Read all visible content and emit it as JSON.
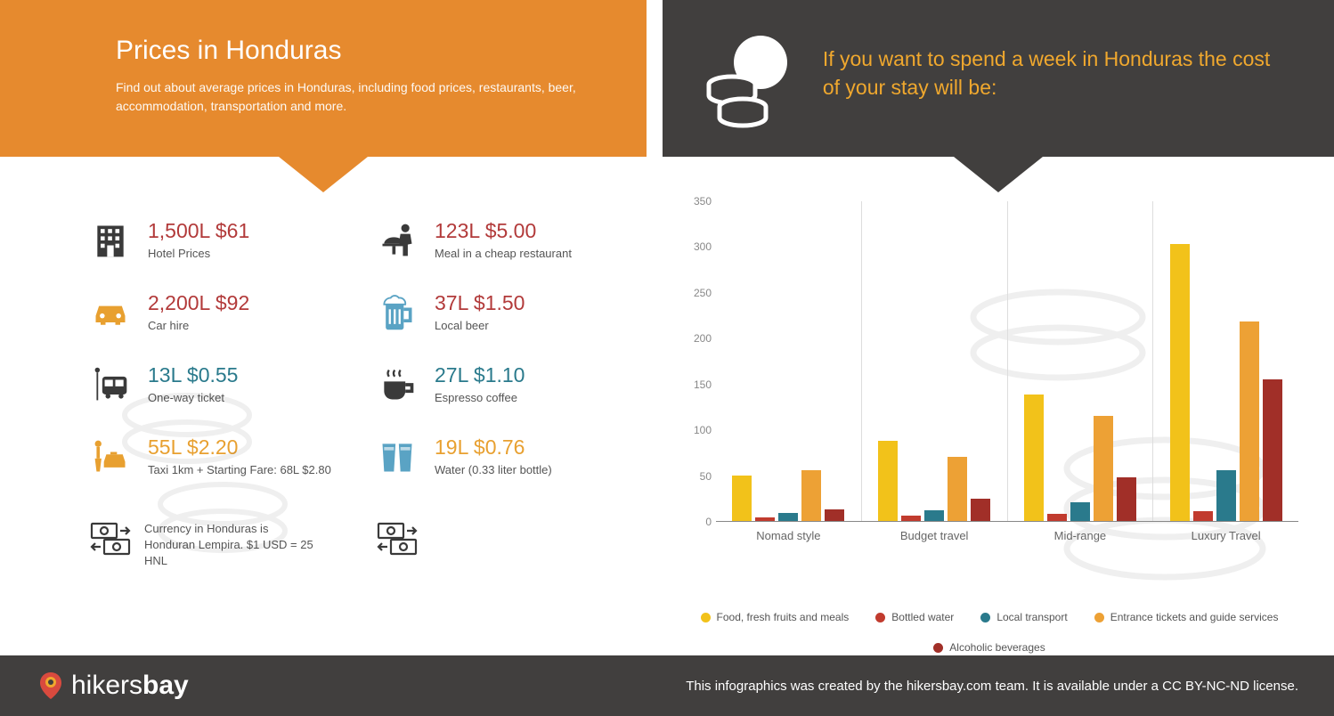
{
  "header": {
    "title": "Prices in Honduras",
    "subtitle": "Find out about average prices in Honduras, including food prices, restaurants, beer, accommodation, transportation and more.",
    "hero_text": "If you want to spend a week in Honduras the cost of your stay will be:"
  },
  "colors": {
    "orange_banner": "#e68a2e",
    "dark_banner": "#413f3e",
    "red": "#b23a3a",
    "teal": "#2a7a8c",
    "orange_text": "#e8a030",
    "icon_dark": "#3a3a3a",
    "icon_orange": "#e8a030",
    "icon_blue": "#5aa3c4"
  },
  "prices": {
    "hotel": {
      "amount": "1,500L $61",
      "label": "Hotel Prices",
      "color": "red",
      "icon": "building",
      "icon_color": "#3a3a3a"
    },
    "meal": {
      "amount": "123L $5.00",
      "label": "Meal in a cheap restaurant",
      "color": "red",
      "icon": "waiter",
      "icon_color": "#3a3a3a"
    },
    "car": {
      "amount": "2,200L $92",
      "label": "Car hire",
      "color": "red",
      "icon": "car",
      "icon_color": "#e8a030"
    },
    "beer": {
      "amount": "37L $1.50",
      "label": "Local beer",
      "color": "red",
      "icon": "beer",
      "icon_color": "#5aa3c4"
    },
    "ticket": {
      "amount": "13L $0.55",
      "label": "One-way ticket",
      "color": "teal",
      "icon": "bus",
      "icon_color": "#3a3a3a"
    },
    "coffee": {
      "amount": "27L $1.10",
      "label": "Espresso coffee",
      "color": "teal",
      "icon": "coffee",
      "icon_color": "#3a3a3a"
    },
    "taxi": {
      "amount": "55L $2.20",
      "label": "Taxi 1km + Starting Fare: 68L $2.80",
      "color": "orange",
      "icon": "taxi",
      "icon_color": "#e8a030"
    },
    "water": {
      "amount": "19L $0.76",
      "label": "Water (0.33 liter bottle)",
      "color": "orange",
      "icon": "glass",
      "icon_color": "#5aa3c4"
    }
  },
  "currency_note": "Currency in Honduras is Honduran Lempira. $1 USD = 25 HNL",
  "chart": {
    "type": "bar",
    "ylim": [
      0,
      350
    ],
    "ytick_step": 50,
    "categories": [
      "Nomad style",
      "Budget travel",
      "Mid-range",
      "Luxury Travel"
    ],
    "series": [
      {
        "name": "Food, fresh fruits and meals",
        "color": "#f2c21a",
        "values": [
          50,
          88,
          138,
          302
        ]
      },
      {
        "name": "Bottled water",
        "color": "#c13b2e",
        "values": [
          4,
          6,
          8,
          11
        ]
      },
      {
        "name": "Local transport",
        "color": "#2a7a8c",
        "values": [
          9,
          12,
          20,
          55
        ]
      },
      {
        "name": "Entrance tickets and guide services",
        "color": "#eda135",
        "values": [
          55,
          70,
          115,
          218
        ]
      },
      {
        "name": "Alcoholic beverages",
        "color": "#a12f28",
        "values": [
          13,
          24,
          48,
          155
        ]
      }
    ],
    "label_color": "#666",
    "label_fontsize": 13,
    "axis_color": "#888"
  },
  "footer": {
    "brand_pin": "hikers",
    "brand_bold": "bay",
    "text": "This infographics was created by the hikersbay.com team. It is available under a CC BY-NC-ND license."
  }
}
